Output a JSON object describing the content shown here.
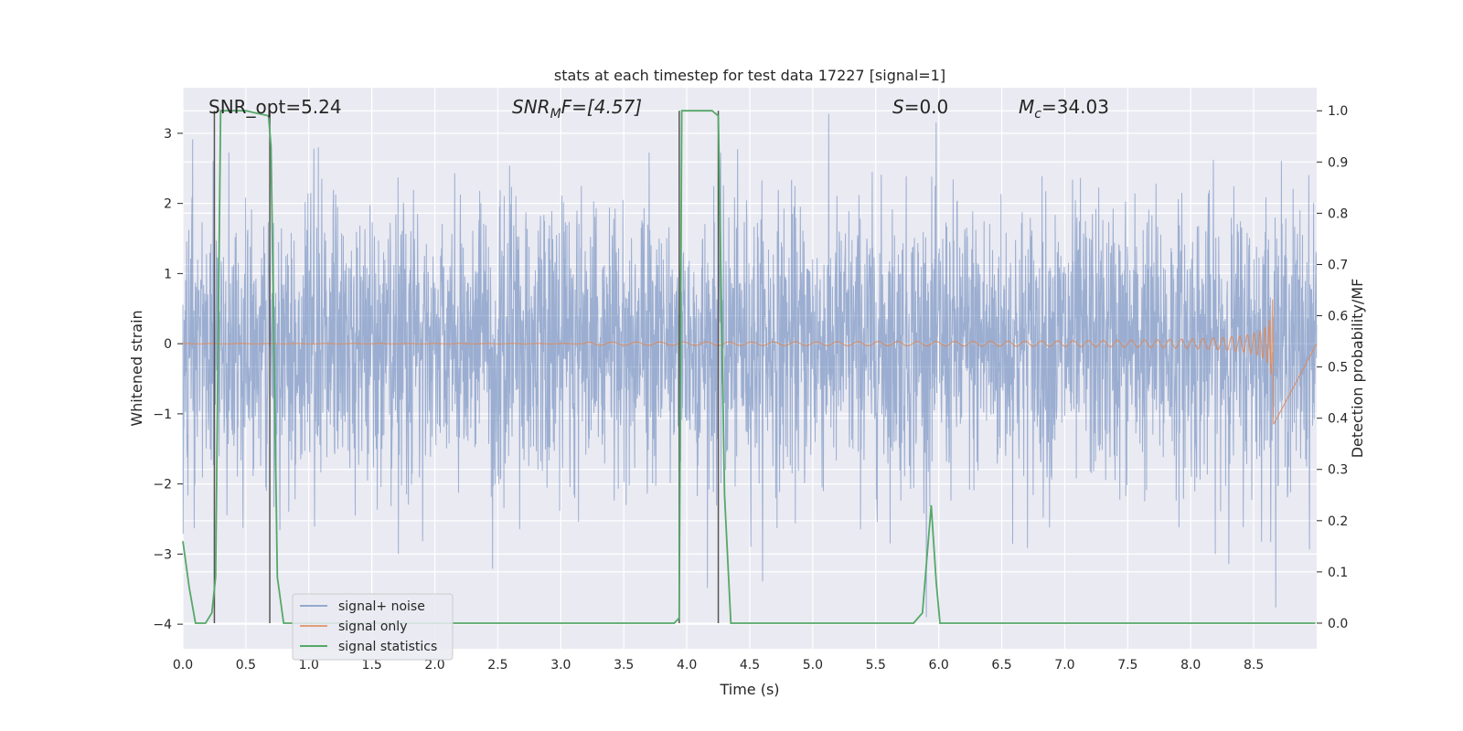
{
  "chart_data": {
    "type": "line",
    "title": "stats at each timestep for test data 17227 [signal=1]",
    "xlabel": "Time (s)",
    "ylabel": "Whitened strain",
    "y2label": "Detection probability/MF",
    "xlim": [
      0,
      9.0
    ],
    "ylim": [
      -4.35,
      3.65
    ],
    "y2lim": [
      -0.05,
      1.045
    ],
    "xticks": [
      0.0,
      0.5,
      1.0,
      1.5,
      2.0,
      2.5,
      3.0,
      3.5,
      4.0,
      4.5,
      5.0,
      5.5,
      6.0,
      6.5,
      7.0,
      7.5,
      8.0,
      8.5
    ],
    "xtick_labels": [
      "0.0",
      "0.5",
      "1.0",
      "1.5",
      "2.0",
      "2.5",
      "3.0",
      "3.5",
      "4.0",
      "4.5",
      "5.0",
      "5.5",
      "6.0",
      "6.5",
      "7.0",
      "7.5",
      "8.0",
      "8.5"
    ],
    "yticks": [
      3,
      2,
      1,
      0,
      -1,
      -2,
      -3,
      -4
    ],
    "ytick_labels": [
      "3",
      "2",
      "1",
      "0",
      "−1",
      "−2",
      "−3",
      "−4"
    ],
    "y2ticks": [
      1.0,
      0.9,
      0.8,
      0.7,
      0.6,
      0.5,
      0.4,
      0.3,
      0.2,
      0.1,
      0.0
    ],
    "y2tick_labels": [
      "1.0",
      "0.9",
      "0.8",
      "0.7",
      "0.6",
      "0.5",
      "0.4",
      "0.3",
      "0.2",
      "0.1",
      "0.0"
    ],
    "grid": true,
    "legend_position": "lower-left",
    "annotations": {
      "snr_opt": "SNR_opt=5.24",
      "snr_mf_base": "SNR",
      "snr_mf_sub": "M",
      "snr_mf_rest": "F=[4.57]",
      "s_symbol": "S",
      "s_rest": "=0.0",
      "mc_base": "M",
      "mc_sub": "c",
      "mc_rest": "=34.03"
    },
    "series": [
      {
        "name": "signal+ noise",
        "color": "#4c72b0",
        "noise_sigma": 1.0,
        "x_range": [
          0,
          9.0
        ]
      },
      {
        "name": "signal only",
        "color": "#dd8452",
        "chirp_end": 8.66,
        "peak_amplitude": 1.3
      },
      {
        "name": "signal statistics",
        "color": "#55a868",
        "axis": "right",
        "x": [
          0.0,
          0.05,
          0.1,
          0.18,
          0.23,
          0.26,
          0.3,
          0.5,
          0.68,
          0.7,
          0.75,
          0.8,
          0.85,
          1.0,
          3.9,
          3.94,
          3.96,
          4.0,
          4.2,
          4.25,
          4.3,
          4.35,
          4.4,
          5.8,
          5.87,
          5.94,
          5.98,
          6.01,
          6.05,
          8.99
        ],
        "y": [
          0.16,
          0.07,
          0.0,
          0.0,
          0.02,
          0.09,
          1.0,
          1.0,
          0.99,
          0.93,
          0.09,
          0.0,
          0.0,
          0.0,
          0.0,
          0.01,
          1.0,
          1.0,
          1.0,
          0.99,
          0.25,
          0.0,
          0.0,
          0.0,
          0.02,
          0.23,
          0.08,
          0.0,
          0.0,
          0.0
        ]
      }
    ],
    "vertical_markers": {
      "color": "#555555",
      "x": [
        0.25,
        0.69,
        3.94,
        4.25
      ],
      "y_top": 1.0,
      "y_bottom": 0.0
    }
  }
}
